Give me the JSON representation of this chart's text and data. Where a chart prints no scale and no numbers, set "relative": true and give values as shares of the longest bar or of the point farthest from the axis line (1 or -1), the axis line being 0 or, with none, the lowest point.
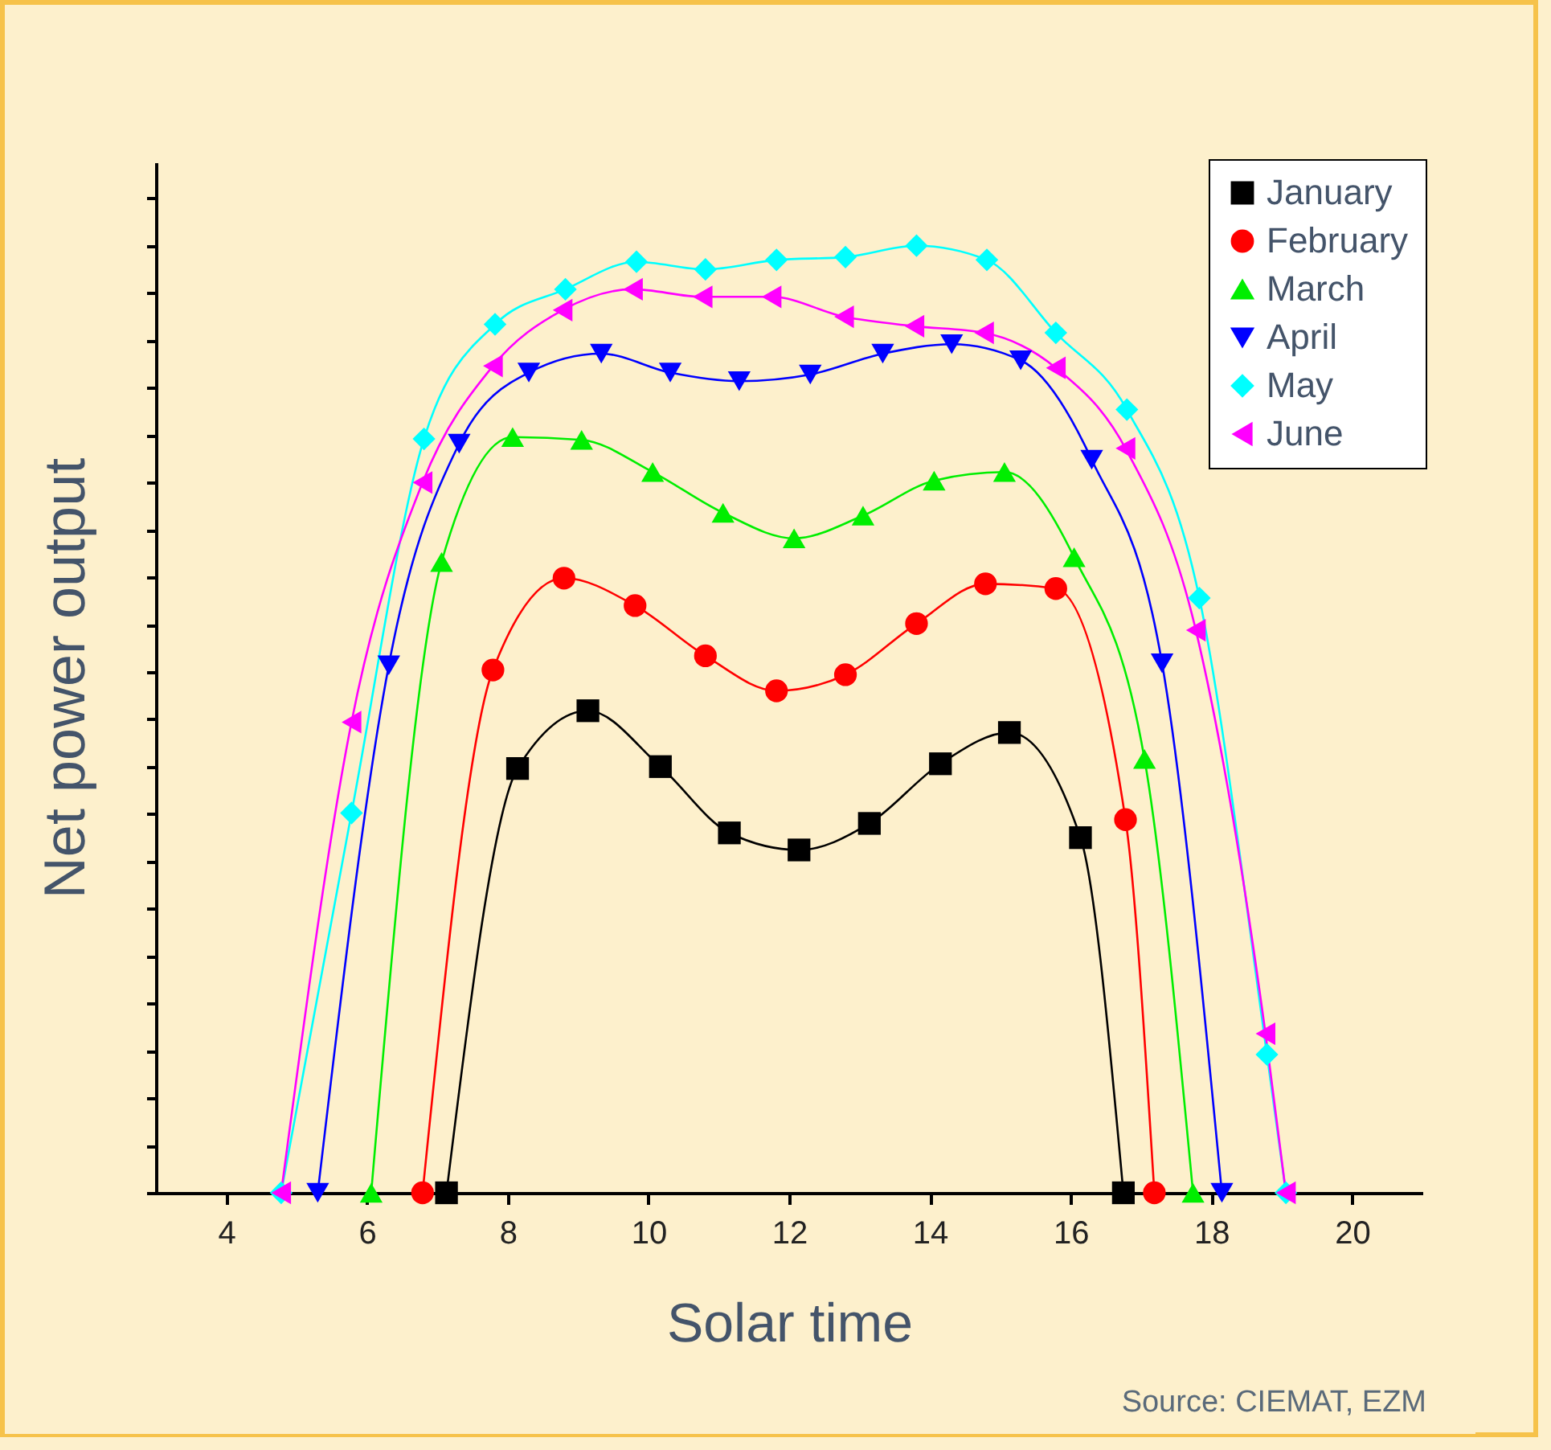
{
  "chart_data": {
    "type": "line",
    "relative": true,
    "xlabel": "Solar time",
    "ylabel": "Net power output",
    "xlim": [
      3,
      21
    ],
    "xticks": [
      4,
      6,
      8,
      10,
      12,
      14,
      16,
      18,
      20
    ],
    "grid": false,
    "legend": "top right",
    "annotations": [
      "Source: CIEMAT, EZM"
    ],
    "series": [
      {
        "name": "January",
        "color": "#000000",
        "marker": "square",
        "x": [
          7.13,
          8.14,
          9.14,
          10.17,
          11.15,
          12.14,
          13.14,
          14.15,
          15.13,
          16.14,
          16.75
        ],
        "values": [
          0,
          0.448,
          0.509,
          0.45,
          0.38,
          0.362,
          0.39,
          0.453,
          0.486,
          0.375,
          0
        ]
      },
      {
        "name": "February",
        "color": "#ff0000",
        "marker": "circle",
        "x": [
          6.79,
          7.79,
          8.8,
          9.81,
          10.81,
          11.82,
          12.8,
          13.81,
          14.79,
          15.79,
          16.78,
          17.19
        ],
        "values": [
          0,
          0.552,
          0.649,
          0.62,
          0.567,
          0.53,
          0.547,
          0.601,
          0.643,
          0.638,
          0.394,
          0
        ]
      },
      {
        "name": "March",
        "color": "#00ee00",
        "marker": "triangle",
        "x": [
          6.06,
          7.06,
          8.07,
          9.05,
          10.06,
          11.06,
          12.07,
          13.05,
          14.06,
          15.06,
          16.05,
          17.05,
          17.74
        ],
        "values": [
          0,
          0.666,
          0.798,
          0.795,
          0.761,
          0.718,
          0.691,
          0.715,
          0.752,
          0.761,
          0.671,
          0.458,
          0
        ]
      },
      {
        "name": "April",
        "color": "#0000ff",
        "marker": "triangle-down",
        "x": [
          5.3,
          6.31,
          7.31,
          8.3,
          9.33,
          10.31,
          11.29,
          12.3,
          13.33,
          14.31,
          15.29,
          16.3,
          17.3,
          18.15
        ],
        "values": [
          0,
          0.557,
          0.791,
          0.866,
          0.886,
          0.866,
          0.857,
          0.864,
          0.886,
          0.896,
          0.879,
          0.774,
          0.559,
          0
        ]
      },
      {
        "name": "May",
        "color": "#00ffff",
        "marker": "diamond",
        "x": [
          4.78,
          5.78,
          6.81,
          7.82,
          8.82,
          9.83,
          10.81,
          11.82,
          12.8,
          13.81,
          14.81,
          15.79,
          16.8,
          17.83,
          18.79,
          19.06
        ],
        "values": [
          0,
          0.401,
          0.796,
          0.917,
          0.954,
          0.983,
          0.975,
          0.985,
          0.988,
          1,
          0.985,
          0.908,
          0.827,
          0.628,
          0.146,
          0
        ]
      },
      {
        "name": "June",
        "color": "#ff00ff",
        "marker": "triangle-left",
        "x": [
          4.78,
          5.78,
          6.79,
          7.79,
          8.78,
          9.78,
          10.77,
          11.75,
          12.78,
          13.78,
          14.77,
          15.79,
          16.78,
          17.78,
          18.77,
          19.06
        ],
        "values": [
          0,
          0.497,
          0.75,
          0.873,
          0.932,
          0.954,
          0.946,
          0.946,
          0.925,
          0.915,
          0.908,
          0.871,
          0.786,
          0.594,
          0.168,
          0
        ]
      }
    ]
  }
}
